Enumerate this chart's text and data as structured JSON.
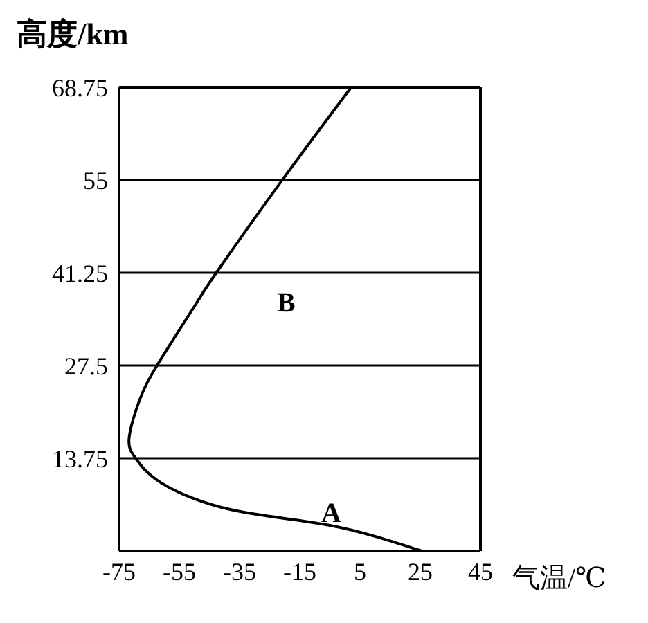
{
  "chart_data": {
    "type": "line",
    "xlabel": "气温/℃",
    "ylabel": "高度/km",
    "x": [
      25.5,
      -5,
      -37.6,
      -61,
      -69.4,
      -71.7,
      -68.5,
      -62.4,
      -49.8,
      -42.8,
      -21.3,
      2
    ],
    "series": [
      {
        "color": "#000000",
        "values": [
          0,
          3.8,
          6.1,
          10.1,
          13.7,
          16.6,
          22,
          27.5,
          36.4,
          41.2,
          54.7,
          68.7
        ]
      }
    ],
    "xlim": [
      -75,
      45
    ],
    "xticks": [
      -75,
      -55,
      -35,
      -15,
      5,
      25,
      45
    ],
    "ylim": [
      0,
      68.75
    ],
    "yticks": [
      13.75,
      27.5,
      41.25,
      55,
      68.75
    ],
    "grid": "y",
    "marker": "none",
    "line_style": "solid",
    "annotations": [
      "A",
      "B"
    ]
  }
}
